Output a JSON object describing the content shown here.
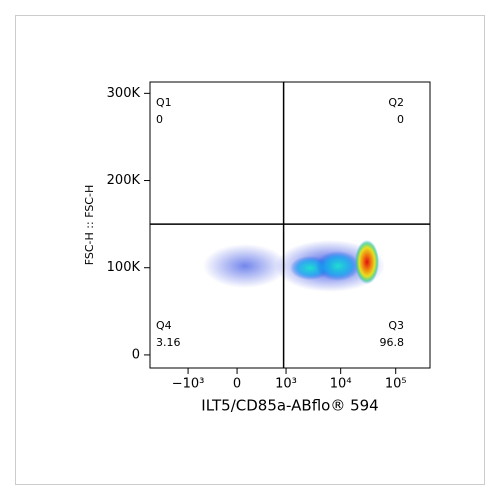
{
  "chart_data": {
    "type": "quadrant-density",
    "ylabel": "FSC-H :: FSC-H",
    "xlabel": "ILT5/CD85a-ABflo® 594",
    "xscale": "biexponential",
    "xlim": [
      -5000,
      420000
    ],
    "xticks": [
      {
        "value": -1000,
        "label": "−10³"
      },
      0,
      {
        "value": 1000,
        "label": "10³"
      },
      {
        "value": 10000,
        "label": "10⁴"
      },
      {
        "value": 100000,
        "label": "10⁵"
      }
    ],
    "ylim": [
      -15000,
      313000
    ],
    "yticks": [
      0,
      {
        "value": 100000,
        "label": "100K"
      },
      {
        "value": 200000,
        "label": "200K"
      },
      {
        "value": 300000,
        "label": "300K"
      }
    ],
    "gate": {
      "x": 900,
      "y": 150000
    },
    "quadrants": [
      {
        "name": "Q1",
        "value": 0
      },
      {
        "name": "Q2",
        "value": 0
      },
      {
        "name": "Q3",
        "value": 96.8
      },
      {
        "name": "Q4",
        "value": 3.16
      }
    ]
  }
}
